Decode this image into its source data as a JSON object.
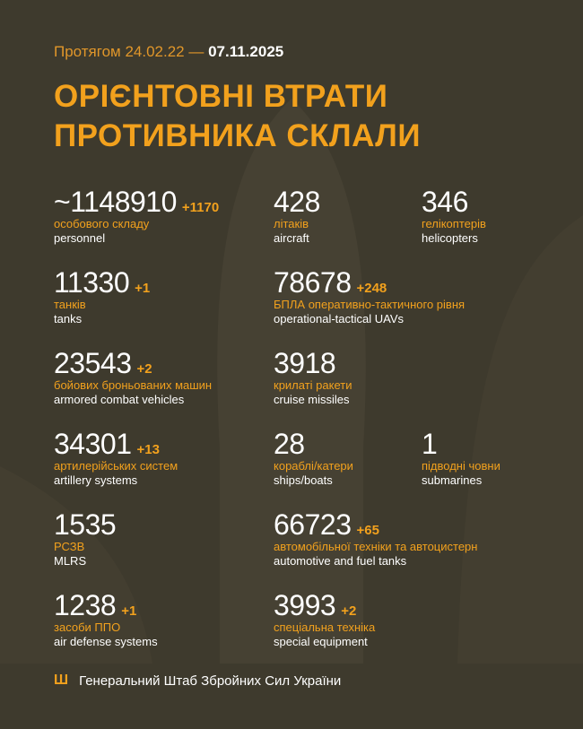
{
  "header": {
    "period_prefix": "Протягом 24.02.22 —",
    "period_end": "07.11.2025",
    "title_line1": "ОРІЄНТОВНІ ВТРАТИ",
    "title_line2": "ПРОТИВНИКА СКЛАЛИ"
  },
  "colors": {
    "background": "#3e3a2d",
    "accent": "#f2a11d",
    "text": "#ffffff"
  },
  "items": [
    {
      "value": "~1148910",
      "increase": "+1170",
      "ua": "особового складу",
      "en": "personnel"
    },
    {
      "value": "428",
      "increase": "",
      "ua": "літаків",
      "en": "aircraft"
    },
    {
      "value": "346",
      "increase": "",
      "ua": "гелікоптерів",
      "en": "helicopters"
    },
    {
      "value": "11330",
      "increase": "+1",
      "ua": "танків",
      "en": "tanks"
    },
    {
      "value": "78678",
      "increase": "+248",
      "ua": "БПЛА оперативно-тактичного рівня",
      "en": "operational-tactical UAVs"
    },
    {
      "value": "23543",
      "increase": "+2",
      "ua": "бойових броньованих машин",
      "en": "armored combat vehicles"
    },
    {
      "value": "3918",
      "increase": "",
      "ua": "крилаті ракети",
      "en": "cruise missiles"
    },
    {
      "value": "34301",
      "increase": "+13",
      "ua": "артилерійських систем",
      "en": "artillery systems"
    },
    {
      "value": "28",
      "increase": "",
      "ua": "кораблі/катери",
      "en": "ships/boats"
    },
    {
      "value": "1",
      "increase": "",
      "ua": "підводні човни",
      "en": "submarines"
    },
    {
      "value": "1535",
      "increase": "",
      "ua": "РСЗВ",
      "en": "MLRS"
    },
    {
      "value": "66723",
      "increase": "+65",
      "ua": "автомобільної техніки та автоцистерн",
      "en": "automotive and fuel tanks"
    },
    {
      "value": "1238",
      "increase": "+1",
      "ua": "засоби ППО",
      "en": "air defense systems"
    },
    {
      "value": "3993",
      "increase": "+2",
      "ua": "спеціальна техніка",
      "en": "special equipment"
    }
  ],
  "footer": {
    "icon": "tryzub-icon",
    "text": "Генеральний Штаб Збройних Сил України"
  }
}
